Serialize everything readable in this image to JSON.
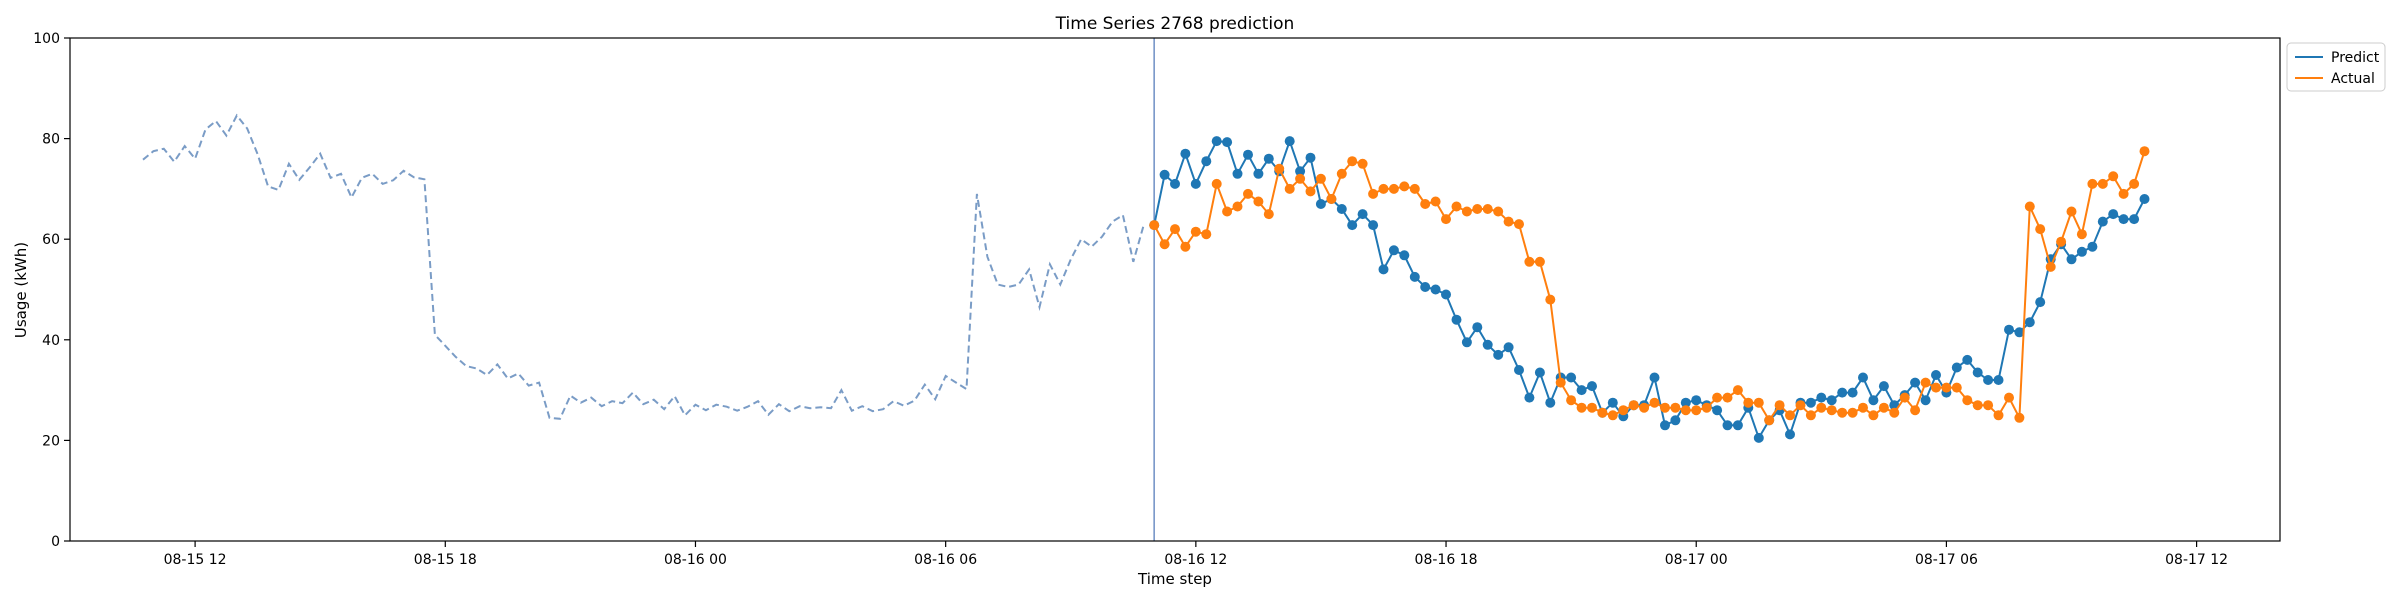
{
  "chart_data": {
    "type": "line",
    "title": "Time Series 2768 prediction",
    "xlabel": "Time step",
    "ylabel": "Usage (kWh)",
    "ylim": [
      0,
      100
    ],
    "yticks": [
      0,
      20,
      40,
      60,
      80,
      100
    ],
    "xlim": [
      "2024-08-15T09:00",
      "2024-08-17T14:00"
    ],
    "xticks": [
      {
        "t": "2024-08-15T12:00",
        "label": "08-15 12"
      },
      {
        "t": "2024-08-15T18:00",
        "label": "08-15 18"
      },
      {
        "t": "2024-08-16T00:00",
        "label": "08-16 00"
      },
      {
        "t": "2024-08-16T06:00",
        "label": "08-16 06"
      },
      {
        "t": "2024-08-16T12:00",
        "label": "08-16 12"
      },
      {
        "t": "2024-08-16T18:00",
        "label": "08-16 18"
      },
      {
        "t": "2024-08-17T00:00",
        "label": "08-17 00"
      },
      {
        "t": "2024-08-17T06:00",
        "label": "08-17 06"
      },
      {
        "t": "2024-08-17T12:00",
        "label": "08-17 12"
      }
    ],
    "interval_minutes": 15,
    "forecast_start": "2024-08-16T11:00",
    "legend_position": "top-right",
    "history": {
      "start": "2024-08-15T10:45",
      "color": "#7a9cc6",
      "values": [
        75.8,
        77.5,
        78.0,
        75.4,
        78.5,
        76.0,
        81.8,
        83.5,
        80.6,
        84.6,
        82.0,
        76.9,
        70.5,
        69.8,
        75.0,
        71.8,
        74.3,
        77.0,
        72.2,
        73.0,
        68.3,
        72.2,
        73.0,
        71.0,
        71.7,
        73.6,
        72.3,
        71.9,
        41.0,
        38.8,
        36.6,
        34.8,
        34.3,
        33.0,
        35.1,
        32.3,
        33.3,
        30.9,
        31.5,
        24.5,
        24.3,
        28.9,
        27.5,
        28.5,
        26.8,
        27.8,
        27.4,
        29.5,
        27.2,
        28.1,
        26.2,
        28.8,
        25.0,
        27.1,
        26.0,
        27.1,
        26.7,
        25.9,
        26.7,
        27.8,
        25.1,
        27.2,
        25.8,
        26.8,
        26.4,
        26.6,
        26.4,
        30.0,
        25.9,
        26.8,
        25.8,
        26.2,
        27.8,
        26.9,
        27.9,
        31.1,
        28.2,
        32.8,
        31.5,
        30.2,
        69.0,
        56.5,
        51.0,
        50.5,
        51.0,
        54.0,
        46.5,
        55.0,
        51.0,
        56.0,
        60.0,
        58.5,
        60.5,
        63.5,
        64.8,
        55.5,
        62.8
      ]
    },
    "series": [
      {
        "name": "Predict",
        "color": "#1f77b4",
        "start": "2024-08-16T11:00",
        "values": [
          62.8,
          72.8,
          71.0,
          77.0,
          71.0,
          75.5,
          79.5,
          79.3,
          73.0,
          76.8,
          73.0,
          76.0,
          73.5,
          79.5,
          73.5,
          76.2,
          67.0,
          68.0,
          66.0,
          62.8,
          65.0,
          62.8,
          54.0,
          57.8,
          56.8,
          52.5,
          50.5,
          50.0,
          49.0,
          44.0,
          39.5,
          42.5,
          39.0,
          37.0,
          38.5,
          34.0,
          28.5,
          33.5,
          27.5,
          32.5,
          32.5,
          30.0,
          30.8,
          25.5,
          27.5,
          24.8,
          27.0,
          27.0,
          32.5,
          23.0,
          24.0,
          27.5,
          28.0,
          27.0,
          26.0,
          23.0,
          23.0,
          26.5,
          20.5,
          24.0,
          26.0,
          21.2,
          27.5,
          27.5,
          28.5,
          28.0,
          29.5,
          29.5,
          32.5,
          28.0,
          30.8,
          27.0,
          29.0,
          31.5,
          28.0,
          33.0,
          29.5,
          34.5,
          36.0,
          33.5,
          32.0,
          32.0,
          42.0,
          41.5,
          43.5,
          47.5,
          56.0,
          59.0,
          56.0,
          57.5,
          58.5,
          63.5,
          65.0,
          64.0,
          64.0,
          68.0
        ]
      },
      {
        "name": "Actual",
        "color": "#ff7f0e",
        "start": "2024-08-16T11:00",
        "values": [
          62.8,
          59.0,
          62.0,
          58.5,
          61.5,
          61.0,
          71.0,
          65.5,
          66.5,
          69.0,
          67.5,
          65.0,
          74.0,
          70.0,
          72.0,
          69.5,
          72.0,
          68.0,
          73.0,
          75.5,
          75.0,
          69.0,
          70.0,
          70.0,
          70.5,
          70.0,
          67.0,
          67.5,
          64.0,
          66.5,
          65.5,
          66.0,
          66.0,
          65.5,
          63.5,
          63.0,
          55.5,
          55.5,
          48.0,
          31.5,
          28.0,
          26.5,
          26.5,
          25.5,
          25.0,
          26.0,
          27.0,
          26.5,
          27.5,
          26.5,
          26.5,
          26.0,
          26.0,
          26.5,
          28.5,
          28.5,
          30.0,
          27.5,
          27.5,
          24.0,
          27.0,
          25.0,
          27.0,
          25.0,
          26.5,
          26.0,
          25.5,
          25.5,
          26.5,
          25.0,
          26.5,
          25.5,
          28.5,
          26.0,
          31.5,
          30.5,
          30.5,
          30.5,
          28.0,
          27.0,
          27.0,
          25.0,
          28.5,
          24.5,
          66.5,
          62.0,
          54.5,
          59.5,
          65.5,
          61.0,
          71.0,
          71.0,
          72.5,
          69.0,
          71.0,
          77.5
        ]
      }
    ]
  }
}
